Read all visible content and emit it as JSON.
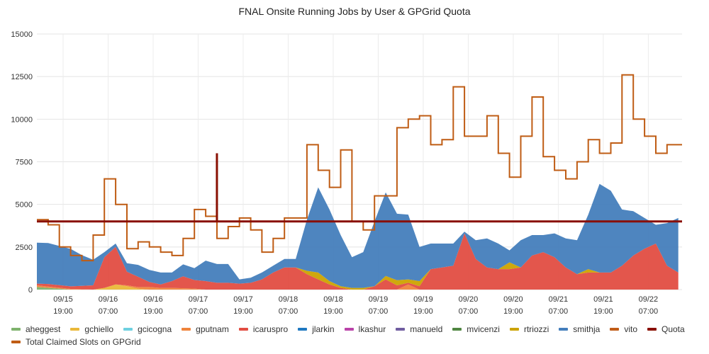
{
  "chart_data": {
    "type": "area",
    "title": "FNAL Onsite Running Jobs by User & GPGrid Quota",
    "xlabel": "",
    "ylabel": "",
    "ylim": [
      0,
      15000
    ],
    "y_ticks": [
      0,
      2500,
      5000,
      7500,
      10000,
      12500,
      15000
    ],
    "y_tick_labels": [
      "0",
      "2500",
      "5000",
      "7500",
      "10000",
      "12500",
      "15000"
    ],
    "x_range": [
      "09/15 12:00",
      "09/22 16:00"
    ],
    "x_ticks": [
      {
        "date": "09/15",
        "time": "19:00"
      },
      {
        "date": "09/16",
        "time": "07:00"
      },
      {
        "date": "09/16",
        "time": "19:00"
      },
      {
        "date": "09/17",
        "time": "07:00"
      },
      {
        "date": "09/17",
        "time": "19:00"
      },
      {
        "date": "09/18",
        "time": "07:00"
      },
      {
        "date": "09/18",
        "time": "19:00"
      },
      {
        "date": "09/19",
        "time": "07:00"
      },
      {
        "date": "09/19",
        "time": "19:00"
      },
      {
        "date": "09/20",
        "time": "07:00"
      },
      {
        "date": "09/20",
        "time": "19:00"
      },
      {
        "date": "09/21",
        "time": "07:00"
      },
      {
        "date": "09/21",
        "time": "19:00"
      },
      {
        "date": "09/22",
        "time": "07:00"
      }
    ],
    "grid": true,
    "legend_position": "bottom",
    "x": [
      "09/15 12:00",
      "09/15 15:00",
      "09/15 18:00",
      "09/15 21:00",
      "09/16 00:00",
      "09/16 03:00",
      "09/16 06:00",
      "09/16 09:00",
      "09/16 12:00",
      "09/16 15:00",
      "09/16 18:00",
      "09/16 21:00",
      "09/17 00:00",
      "09/17 03:00",
      "09/17 06:00",
      "09/17 09:00",
      "09/17 12:00",
      "09/17 15:00",
      "09/17 18:00",
      "09/17 21:00",
      "09/18 00:00",
      "09/18 03:00",
      "09/18 06:00",
      "09/18 09:00",
      "09/18 12:00",
      "09/18 15:00",
      "09/18 18:00",
      "09/18 21:00",
      "09/19 00:00",
      "09/19 03:00",
      "09/19 06:00",
      "09/19 09:00",
      "09/19 12:00",
      "09/19 15:00",
      "09/19 18:00",
      "09/19 21:00",
      "09/20 00:00",
      "09/20 03:00",
      "09/20 06:00",
      "09/20 09:00",
      "09/20 12:00",
      "09/20 15:00",
      "09/20 18:00",
      "09/20 21:00",
      "09/21 00:00",
      "09/21 03:00",
      "09/21 06:00",
      "09/21 09:00",
      "09/21 12:00",
      "09/21 15:00",
      "09/21 18:00",
      "09/21 21:00",
      "09/22 00:00",
      "09/22 03:00",
      "09/22 06:00",
      "09/22 09:00",
      "09/22 12:00",
      "09/22 15:00"
    ],
    "stacked_series": [
      {
        "name": "aheggest",
        "color": "#7eb26d",
        "values": [
          150,
          100,
          50,
          0,
          0,
          0,
          0,
          0,
          0,
          0,
          0,
          0,
          0,
          0,
          0,
          0,
          0,
          0,
          0,
          0,
          0,
          0,
          0,
          0,
          0,
          0,
          0,
          0,
          0,
          0,
          0,
          0,
          0,
          0,
          0,
          0,
          0,
          0,
          0,
          0,
          0,
          0,
          0,
          0,
          0,
          0,
          0,
          0,
          0,
          0,
          0,
          0,
          0,
          0,
          0,
          0,
          0,
          0
        ]
      },
      {
        "name": "gchiello",
        "color": "#eab839",
        "values": [
          0,
          0,
          0,
          0,
          0,
          0,
          100,
          300,
          200,
          50,
          0,
          0,
          0,
          0,
          0,
          0,
          0,
          0,
          0,
          0,
          0,
          0,
          0,
          0,
          0,
          0,
          0,
          0,
          0,
          0,
          0,
          0,
          0,
          0,
          0,
          0,
          0,
          0,
          0,
          0,
          0,
          0,
          0,
          0,
          0,
          0,
          0,
          0,
          0,
          0,
          0,
          0,
          0,
          0,
          0,
          0,
          0,
          0
        ]
      },
      {
        "name": "gcicogna",
        "color": "#6ed0e0",
        "values": [
          0,
          0,
          0,
          0,
          0,
          0,
          0,
          0,
          0,
          0,
          0,
          0,
          0,
          0,
          0,
          0,
          0,
          0,
          0,
          0,
          0,
          0,
          0,
          0,
          0,
          0,
          0,
          0,
          0,
          0,
          0,
          0,
          0,
          0,
          0,
          0,
          0,
          0,
          0,
          0,
          0,
          0,
          0,
          0,
          0,
          0,
          0,
          0,
          0,
          0,
          0,
          0,
          0,
          0,
          0,
          0,
          0,
          0
        ]
      },
      {
        "name": "gputnam",
        "color": "#ef843c",
        "values": [
          100,
          80,
          60,
          40,
          20,
          0,
          0,
          0,
          50,
          100,
          150,
          100,
          100,
          80,
          60,
          0,
          0,
          0,
          0,
          0,
          0,
          0,
          0,
          0,
          0,
          0,
          0,
          0,
          0,
          0,
          0,
          0,
          0,
          300,
          0,
          0,
          0,
          0,
          0,
          0,
          0,
          0,
          0,
          0,
          0,
          0,
          0,
          0,
          0,
          0,
          0,
          0,
          0,
          0,
          0,
          0,
          0,
          0
        ]
      },
      {
        "name": "icaruspro",
        "color": "#e24d42",
        "values": [
          100,
          150,
          150,
          150,
          200,
          250,
          1800,
          2200,
          800,
          600,
          300,
          200,
          400,
          700,
          500,
          500,
          400,
          400,
          350,
          400,
          600,
          1000,
          1300,
          1300,
          900,
          600,
          300,
          100,
          0,
          0,
          200,
          600,
          250,
          100,
          200,
          1200,
          1300,
          1400,
          3300,
          1800,
          1300,
          1200,
          1200,
          1300,
          2000,
          2200,
          1900,
          1300,
          900,
          1000,
          1000,
          1000,
          1400,
          2000,
          2400,
          2700,
          1400,
          1000
        ]
      },
      {
        "name": "jlarkin",
        "color": "#1f78c1",
        "values": [
          0,
          0,
          0,
          0,
          0,
          0,
          0,
          0,
          0,
          0,
          0,
          0,
          0,
          0,
          0,
          0,
          0,
          0,
          0,
          0,
          0,
          0,
          0,
          0,
          0,
          0,
          0,
          0,
          0,
          0,
          0,
          0,
          0,
          0,
          0,
          0,
          0,
          0,
          0,
          0,
          0,
          0,
          0,
          0,
          0,
          0,
          0,
          0,
          0,
          0,
          0,
          0,
          0,
          0,
          0,
          0,
          0,
          0
        ]
      },
      {
        "name": "lkashur",
        "color": "#ba43a9",
        "values": [
          0,
          0,
          0,
          0,
          0,
          0,
          0,
          0,
          0,
          0,
          0,
          0,
          0,
          0,
          0,
          0,
          0,
          0,
          0,
          0,
          0,
          0,
          0,
          0,
          0,
          0,
          0,
          0,
          0,
          0,
          0,
          0,
          0,
          0,
          0,
          0,
          0,
          0,
          0,
          0,
          0,
          0,
          0,
          0,
          0,
          0,
          0,
          0,
          0,
          0,
          0,
          0,
          0,
          0,
          0,
          0,
          0,
          0
        ]
      },
      {
        "name": "manueld",
        "color": "#705da0",
        "values": [
          0,
          0,
          0,
          0,
          0,
          0,
          0,
          0,
          0,
          0,
          0,
          0,
          0,
          0,
          0,
          0,
          0,
          0,
          0,
          0,
          0,
          0,
          0,
          0,
          0,
          0,
          0,
          0,
          0,
          0,
          0,
          0,
          0,
          0,
          0,
          0,
          0,
          0,
          0,
          0,
          0,
          0,
          0,
          0,
          0,
          0,
          0,
          0,
          0,
          0,
          0,
          0,
          0,
          0,
          0,
          0,
          0,
          0
        ]
      },
      {
        "name": "mvicenzi",
        "color": "#508642",
        "values": [
          0,
          0,
          0,
          0,
          0,
          0,
          0,
          0,
          0,
          0,
          0,
          0,
          0,
          0,
          0,
          0,
          0,
          0,
          0,
          0,
          0,
          0,
          0,
          0,
          0,
          0,
          0,
          0,
          0,
          0,
          0,
          0,
          0,
          0,
          0,
          0,
          0,
          0,
          0,
          0,
          0,
          0,
          0,
          0,
          0,
          0,
          0,
          0,
          0,
          0,
          0,
          0,
          0,
          0,
          0,
          0,
          0,
          0
        ]
      },
      {
        "name": "rtriozzi",
        "color": "#cca300",
        "values": [
          0,
          0,
          0,
          0,
          0,
          0,
          0,
          0,
          0,
          0,
          0,
          0,
          0,
          0,
          0,
          0,
          0,
          0,
          0,
          0,
          0,
          0,
          0,
          0,
          200,
          400,
          200,
          100,
          100,
          100,
          0,
          200,
          300,
          200,
          300,
          0,
          0,
          0,
          0,
          0,
          0,
          0,
          400,
          0,
          0,
          0,
          0,
          0,
          0,
          200,
          0,
          0,
          0,
          0,
          0,
          0,
          0,
          0
        ]
      },
      {
        "name": "smithja",
        "color": "#447ebc",
        "values": [
          2400,
          2400,
          2300,
          2200,
          1800,
          1500,
          300,
          200,
          500,
          700,
          700,
          700,
          500,
          700,
          700,
          1200,
          1100,
          1100,
          250,
          300,
          400,
          400,
          500,
          500,
          3000,
          5000,
          4200,
          3000,
          1800,
          2100,
          3800,
          4900,
          3900,
          3800,
          2000,
          1500,
          1400,
          1300,
          100,
          1100,
          1700,
          1500,
          700,
          1600,
          1200,
          1000,
          1400,
          1700,
          2000,
          3200,
          5200,
          4800,
          3300,
          2600,
          1800,
          1100,
          2500,
          3200
        ]
      },
      {
        "name": "vito",
        "color": "#c15c17",
        "values": [
          0,
          0,
          0,
          0,
          0,
          0,
          0,
          0,
          0,
          0,
          0,
          0,
          0,
          0,
          0,
          0,
          0,
          0,
          0,
          0,
          0,
          0,
          0,
          0,
          0,
          0,
          0,
          0,
          0,
          0,
          0,
          0,
          0,
          0,
          0,
          0,
          0,
          0,
          0,
          0,
          0,
          0,
          0,
          0,
          0,
          0,
          0,
          0,
          0,
          0,
          0,
          0,
          0,
          0,
          0,
          0,
          0,
          0
        ]
      }
    ],
    "quota": {
      "name": "Quota",
      "color": "#890f02",
      "value": 4000,
      "spike": {
        "x": "09/17 12:00",
        "value": 8000
      }
    },
    "total_series": {
      "name": "Total Claimed Slots on GPGrid",
      "color": "#bf5c14",
      "values": [
        4100,
        3800,
        2500,
        2000,
        1700,
        3200,
        6500,
        5000,
        2400,
        2800,
        2500,
        2200,
        2000,
        3000,
        4700,
        4300,
        3000,
        3700,
        4200,
        3500,
        2200,
        3000,
        4200,
        4200,
        8500,
        7000,
        6000,
        8200,
        4000,
        3500,
        5500,
        5500,
        9500,
        10000,
        10200,
        8500,
        8800,
        11900,
        9000,
        9000,
        10200,
        8000,
        6600,
        9000,
        11300,
        7800,
        7000,
        6500,
        7500,
        8800,
        8000,
        8600,
        12600,
        10000,
        9000,
        8000,
        8500,
        8500
      ]
    }
  },
  "legend": {
    "items": [
      {
        "label": "aheggest",
        "color": "#7eb26d"
      },
      {
        "label": "gchiello",
        "color": "#eab839"
      },
      {
        "label": "gcicogna",
        "color": "#6ed0e0"
      },
      {
        "label": "gputnam",
        "color": "#ef843c"
      },
      {
        "label": "icaruspro",
        "color": "#e24d42"
      },
      {
        "label": "jlarkin",
        "color": "#1f78c1"
      },
      {
        "label": "lkashur",
        "color": "#ba43a9"
      },
      {
        "label": "manueld",
        "color": "#705da0"
      },
      {
        "label": "mvicenzi",
        "color": "#508642"
      },
      {
        "label": "rtriozzi",
        "color": "#cca300"
      },
      {
        "label": "smithja",
        "color": "#447ebc"
      },
      {
        "label": "vito",
        "color": "#c15c17"
      },
      {
        "label": "Quota",
        "color": "#890f02"
      },
      {
        "label": "Total Claimed Slots on GPGrid",
        "color": "#bf5c14"
      }
    ]
  }
}
